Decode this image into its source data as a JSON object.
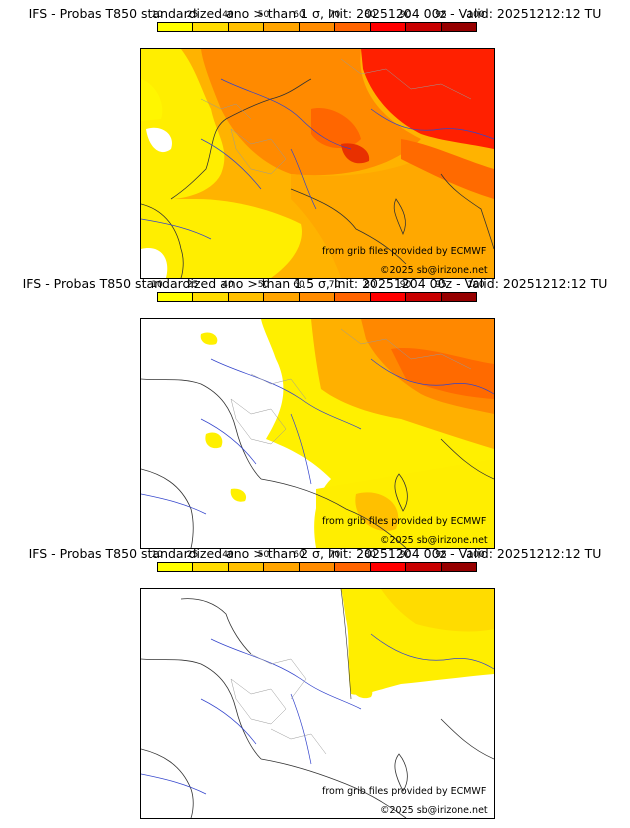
{
  "legend": {
    "ticks": [
      "10",
      "25",
      "40",
      "50",
      "60",
      "70",
      "80",
      "90",
      "95",
      "100"
    ],
    "colors": [
      "#ffff00",
      "#ffdc00",
      "#ffc000",
      "#ffa500",
      "#ff8c00",
      "#ff6400",
      "#ff0000",
      "#c80000",
      "#960000"
    ]
  },
  "panels": [
    {
      "title": "IFS - Probas T850  standardized ano > than 1 σ, Init: 20251204 00z - Valid: 20251212:12 TU",
      "source": "from grib files provided by ECMWF",
      "copyright": "©2025 sb@irizone.net"
    },
    {
      "title": "IFS - Probas T850  standardized ano > than 1.5 σ, Init: 20251204 00z - Valid: 20251212:12 TU",
      "source": "from grib files provided by ECMWF",
      "copyright": "©2025 sb@irizone.net"
    },
    {
      "title": "IFS - Probas T850  standardized ano > than 2 σ, Init: 20251204 00z - Valid: 20251212:12 TU",
      "source": "from grib files provided by ECMWF",
      "copyright": "©2025 sb@irizone.net"
    }
  ]
}
